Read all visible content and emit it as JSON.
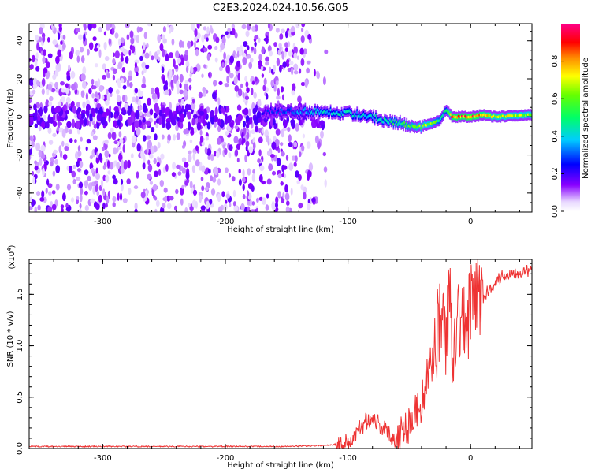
{
  "chart_data": [
    {
      "type": "heatmap",
      "title": "C2E3.2024.024.10.56.G05",
      "xlabel": "Height of straight line (km)",
      "ylabel": "Frequency (Hz)",
      "xlim": [
        -360,
        50
      ],
      "ylim": [
        -50,
        49
      ],
      "xticks": [
        -300,
        -200,
        -100,
        0
      ],
      "xtick_labels": [
        "-300",
        "-200",
        "-100",
        "0"
      ],
      "yticks": [
        -40,
        -20,
        0,
        20,
        40
      ],
      "ytick_labels": [
        "-40",
        "-20",
        "0",
        "20",
        "40"
      ],
      "colorbar": {
        "label": "Normalized spectral amplitude",
        "range": [
          0,
          1
        ],
        "ticks": [
          0.0,
          0.2,
          0.4,
          0.6,
          0.8
        ],
        "tick_labels": [
          "0.0",
          "0.2",
          "0.4",
          "0.6",
          "0.8"
        ],
        "colormap": "rainbow (white-violet-blue-cyan-green-yellow-red-magenta)"
      },
      "signal_track": {
        "description": "frequency ridge of the signal versus height",
        "x": [
          -170,
          -140,
          -120,
          -100,
          -80,
          -60,
          -45,
          -35,
          -25,
          -20,
          -15,
          0,
          10,
          20,
          50
        ],
        "y": [
          3,
          3,
          3,
          2,
          0,
          -3,
          -5,
          -4,
          -2,
          4,
          0,
          0,
          1,
          0,
          1
        ],
        "amplitude": [
          0.25,
          0.35,
          0.45,
          0.45,
          0.45,
          0.55,
          0.65,
          0.7,
          0.55,
          0.5,
          0.9,
          0.95,
          0.85,
          0.75,
          0.7
        ]
      },
      "noise_region_x": [
        -360,
        -120
      ]
    },
    {
      "type": "line",
      "xlabel": "Height of straight line (km)",
      "ylabel": "SNR (10 * v/v)",
      "ylabel_scale_prefix": "(x10",
      "ylabel_scale_exp": "4",
      "ylabel_scale_suffix": ")",
      "xlim": [
        -360,
        50
      ],
      "ylim": [
        0,
        1.84
      ],
      "xticks": [
        -300,
        -200,
        -100,
        0
      ],
      "xtick_labels": [
        "-300",
        "-200",
        "-100",
        "0"
      ],
      "yticks": [
        0.0,
        0.5,
        1.0,
        1.5
      ],
      "ytick_labels": [
        "0.0",
        "0.5",
        "1.0",
        "1.5"
      ],
      "color": "#ee3333",
      "series": [
        {
          "name": "SNR",
          "x": [
            -360,
            -340,
            -300,
            -250,
            -200,
            -150,
            -120,
            -110,
            -100,
            -95,
            -90,
            -85,
            -80,
            -75,
            -70,
            -65,
            -60,
            -55,
            -50,
            -45,
            -40,
            -35,
            -30,
            -25,
            -20,
            -17,
            -15,
            -12,
            -10,
            -8,
            -5,
            0,
            5,
            10,
            15,
            20,
            25,
            30,
            40,
            50
          ],
          "y": [
            0.02,
            0.02,
            0.02,
            0.02,
            0.02,
            0.02,
            0.03,
            0.04,
            0.06,
            0.1,
            0.2,
            0.28,
            0.3,
            0.25,
            0.18,
            0.12,
            0.1,
            0.18,
            0.25,
            0.35,
            0.45,
            0.7,
            0.9,
            1.3,
            1.1,
            1.5,
            1.0,
            1.2,
            1.3,
            1.25,
            1.15,
            1.35,
            1.5,
            1.45,
            1.55,
            1.62,
            1.67,
            1.7,
            1.72,
            1.73
          ]
        }
      ]
    }
  ]
}
